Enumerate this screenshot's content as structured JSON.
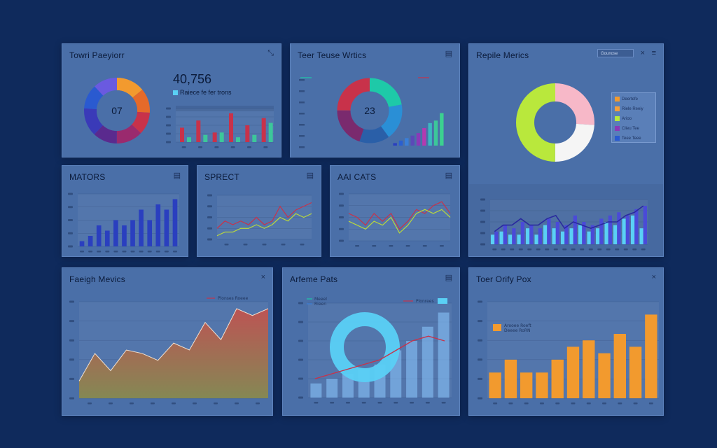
{
  "panels": {
    "p1": {
      "title": "Towri Paeyiorr",
      "icon": "⤡",
      "donut_center": "07",
      "big_number": "40,756",
      "caption": "Raiece fe fer trons",
      "minibar_header": "—"
    },
    "p2": {
      "title": "Teer Teuse Wrtics",
      "icon": "▤",
      "donut_center": "23"
    },
    "p3": {
      "title": "Repile Merics",
      "icon": "≡",
      "close_icon": "×",
      "dropdown": "Gounose",
      "legend": [
        "Deertefe",
        "Riele Reeiy",
        "Arioo",
        "Clieu Tee",
        "Teee Teee"
      ]
    },
    "p4": {
      "title": "MATORS",
      "icon": "▤"
    },
    "p5": {
      "title": "SPRECT",
      "icon": "▤"
    },
    "p6": {
      "title": "AAI CATS",
      "icon": "▤"
    },
    "p7": {
      "title": "Faeigh Mevics",
      "icon": "×",
      "legend": "Plonses Roeee"
    },
    "p8": {
      "title": "Arfeme Pats",
      "icon": "▤",
      "legend": [
        "Meeel",
        "Rieen"
      ],
      "legend_right": "Plonrees"
    },
    "p9": {
      "title": "Toer Orify Pox",
      "icon": "×",
      "legend": [
        "Arooee Roeft",
        "Deeee RoRN"
      ]
    }
  },
  "colors": {
    "page_bg": "#0f2a5c",
    "panel_bg": "#4a6fa8",
    "orange": "#f29a2e",
    "red_line": "#c8324a",
    "yellow_line": "#b9d83c",
    "blue_bar": "#2a3fbf",
    "light_blue": "#5ad0f5"
  },
  "chart_data": [
    {
      "id": "p1-donut",
      "type": "pie",
      "values": [
        14,
        12,
        11,
        13,
        12,
        14,
        12,
        12
      ],
      "colors": [
        "#f29a2e",
        "#e56a2a",
        "#c8324a",
        "#9a2a6e",
        "#5a2a8e",
        "#3a3ab8",
        "#2a5ad0",
        "#6a5ae0"
      ]
    },
    {
      "id": "p1-minibar",
      "type": "bar",
      "categories": [
        "a",
        "b",
        "c",
        "d",
        "e",
        "f"
      ],
      "series": [
        {
          "color": "#c8324a",
          "values": [
            6,
            9,
            4,
            12,
            7,
            10
          ]
        },
        {
          "color": "#3cc79a",
          "values": [
            2,
            3,
            4,
            2,
            3,
            8
          ]
        }
      ],
      "ylim": [
        0,
        14
      ]
    },
    {
      "id": "p2-donut",
      "type": "pie",
      "values": [
        22,
        18,
        15,
        20,
        25
      ],
      "colors": [
        "#1ec9a8",
        "#2a8fd6",
        "#2a5fa8",
        "#7a2a6e",
        "#c8324a"
      ]
    },
    {
      "id": "p2-bars",
      "type": "bar",
      "values": [
        1,
        2,
        3,
        4,
        5,
        7,
        9,
        10,
        13
      ],
      "colors": [
        "#2a3fbf",
        "#2a5fd0",
        "#3a7fd8",
        "#5a4ab8",
        "#8a3ab8",
        "#b43ab0",
        "#3cb8c0",
        "#3cc79a",
        "#3cd090"
      ],
      "ylim": [
        0,
        14
      ]
    },
    {
      "id": "p2-legend-lines",
      "type": "line",
      "series": [
        {
          "color": "#1ec9a8"
        },
        {
          "color": "#c8324a"
        }
      ]
    },
    {
      "id": "p3-donut",
      "type": "pie",
      "values": [
        26,
        24,
        50
      ],
      "colors": [
        "#f7b8c8",
        "#f5f5f5",
        "#b9e83c"
      ]
    },
    {
      "id": "p3-bars",
      "type": "bar",
      "categories": [
        "1",
        "2",
        "3",
        "4",
        "5",
        "6",
        "7",
        "8",
        "9",
        "10",
        "11",
        "12",
        "13",
        "14",
        "15",
        "16",
        "17",
        "18"
      ],
      "series": [
        {
          "name": "a",
          "color": "#5ad0f5",
          "values": [
            3,
            4,
            3,
            3,
            5,
            3,
            6,
            5,
            4,
            5,
            6,
            4,
            5,
            7,
            6,
            8,
            9,
            5
          ]
        },
        {
          "name": "b",
          "color": "#4a4ad8",
          "values": [
            4,
            6,
            5,
            7,
            6,
            5,
            8,
            7,
            6,
            9,
            7,
            6,
            8,
            9,
            10,
            9,
            11,
            12
          ]
        }
      ],
      "line": [
        4,
        6,
        6,
        8,
        6,
        6,
        8,
        9,
        5,
        7,
        6,
        5,
        6,
        7,
        7,
        9,
        10,
        12
      ],
      "ylim": [
        0,
        14
      ]
    },
    {
      "id": "p4-bars",
      "type": "bar",
      "values": [
        1,
        2,
        4,
        3,
        5,
        4,
        5,
        7,
        5,
        8,
        7,
        9
      ],
      "color": "#2a3fbf",
      "ylim": [
        0,
        10
      ]
    },
    {
      "id": "p5-lines",
      "type": "line",
      "series": [
        {
          "color": "#c8324a",
          "values": [
            3,
            5,
            4,
            5,
            4,
            6,
            4,
            5,
            9,
            6,
            8,
            9,
            10
          ]
        },
        {
          "color": "#b9d83c",
          "values": [
            1,
            2,
            2,
            3,
            3,
            4,
            3,
            4,
            6,
            5,
            7,
            6,
            7
          ]
        }
      ],
      "ylim": [
        0,
        12
      ]
    },
    {
      "id": "p6-lines",
      "type": "line",
      "series": [
        {
          "color": "#c8324a",
          "values": [
            7,
            6,
            4,
            7,
            5,
            7,
            3,
            5,
            8,
            7,
            9,
            10,
            7
          ]
        },
        {
          "color": "#b9d83c",
          "values": [
            5,
            4,
            3,
            5,
            4,
            6,
            2,
            4,
            7,
            8,
            7,
            8,
            6
          ]
        }
      ],
      "ylim": [
        0,
        12
      ]
    },
    {
      "id": "p7-area",
      "type": "area",
      "values": [
        5,
        13,
        8,
        14,
        13,
        11,
        16,
        14,
        22,
        17,
        26,
        24,
        26
      ],
      "ylim": [
        0,
        28
      ]
    },
    {
      "id": "p8-combo",
      "type": "bar",
      "values": [
        3,
        4,
        5,
        6,
        7,
        10,
        12,
        15,
        18
      ],
      "line": [
        4,
        5,
        6,
        7,
        8,
        10,
        12,
        13,
        12
      ],
      "ylim": [
        0,
        20
      ]
    },
    {
      "id": "p9-bars",
      "type": "bar",
      "values": [
        4,
        6,
        4,
        4,
        6,
        8,
        9,
        7,
        10,
        8,
        13
      ],
      "color": "#f29a2e",
      "ylim": [
        0,
        15
      ]
    }
  ]
}
